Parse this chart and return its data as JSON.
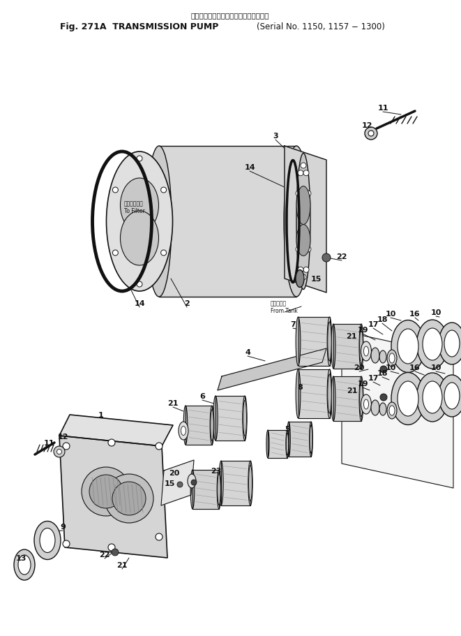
{
  "title_line1": "トランスミッション　ポンプ（適用号機",
  "title_line2_a": "Fig. 271A  TRANSMISSION PUMP",
  "title_line2_b": "Serial No. 1150, 1157 − 1300",
  "bg_color": "#ffffff",
  "lc": "#111111",
  "figsize": [
    6.61,
    9.12
  ],
  "dpi": 100
}
